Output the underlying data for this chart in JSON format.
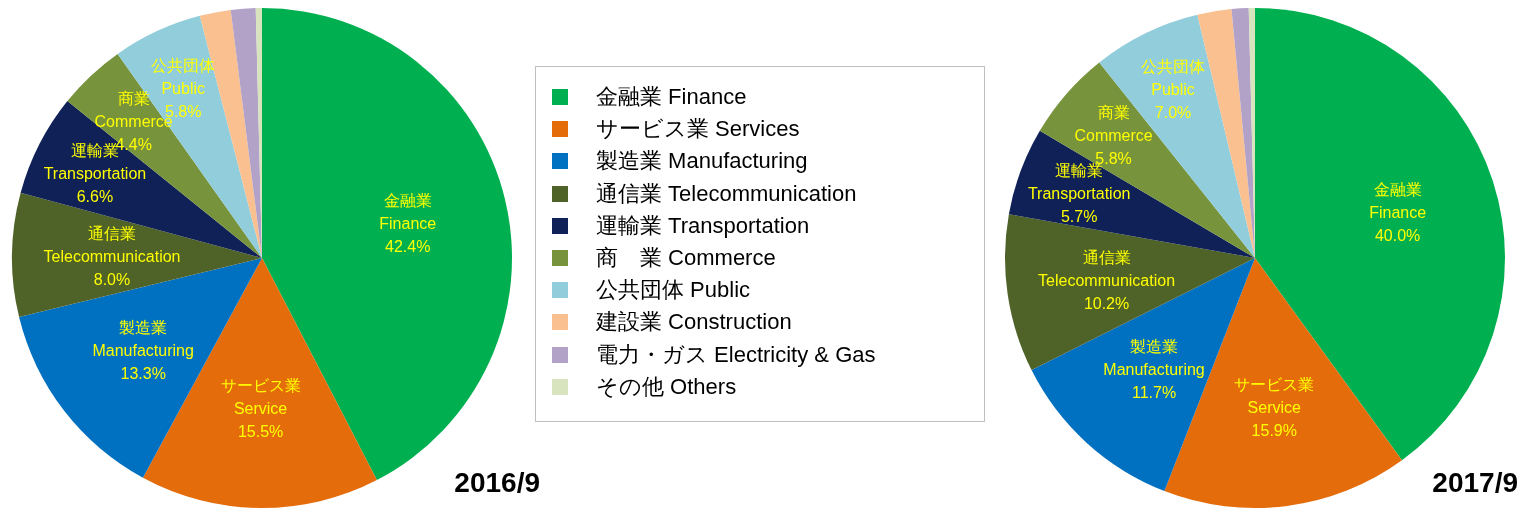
{
  "chart_data": [
    {
      "type": "pie",
      "title": "2016/9",
      "legend": "right",
      "categories": [
        "金融業 Finance",
        "サービス業 Services",
        "製造業 Manufacturing",
        "通信業 Telecommunication",
        "運輸業 Transportation",
        "商　業 Commerce",
        "公共団体 Public",
        "建設業 Construction",
        "電力・ガス Electricity & Gas",
        "その他 Others"
      ],
      "values": [
        42.4,
        15.5,
        13.3,
        8.0,
        6.6,
        4.4,
        5.8,
        2.0,
        1.6,
        0.4
      ],
      "colors": [
        "#00b050",
        "#e46c0a",
        "#0070c0",
        "#4f6228",
        "#0f2156",
        "#77933c",
        "#92cddc",
        "#fac090",
        "#b3a2c7",
        "#d7e4bd"
      ],
      "value_labels": [
        "金融業\nFinance\n42.4%",
        "サービス業\nService\n15.5%",
        "製造業\nManufacturing\n13.3%",
        "通信業\nTelecommunication\n8.0%",
        "運輸業\nTransportation\n6.6%",
        "商業\nCommerce\n4.4%",
        "公共団体\nPublic\n5.8%",
        null,
        null,
        null
      ]
    },
    {
      "type": "pie",
      "title": "2017/9",
      "categories": [
        null,
        null,
        null,
        null,
        null,
        null,
        null,
        null,
        null,
        null
      ],
      "values": [
        40.0,
        15.9,
        11.7,
        10.2,
        5.7,
        5.8,
        7.0,
        2.2,
        1.1,
        0.4
      ],
      "colors": [
        "#00b050",
        "#e46c0a",
        "#0070c0",
        "#4f6228",
        "#0f2156",
        "#77933c",
        "#92cddc",
        "#fac090",
        "#b3a2c7",
        "#d7e4bd"
      ],
      "value_labels": [
        "金融業\nFinance\n40.0%",
        "サービス業\nService\n15.9%",
        "製造業\nManufacturing\n11.7%",
        "通信業\nTelecommunication\n10.2%",
        "運輸業\nTransportation\n5.7%",
        "商業\nCommerce\n5.8%",
        "公共団体\nPublic\n7.0%",
        null,
        null,
        null
      ]
    }
  ]
}
